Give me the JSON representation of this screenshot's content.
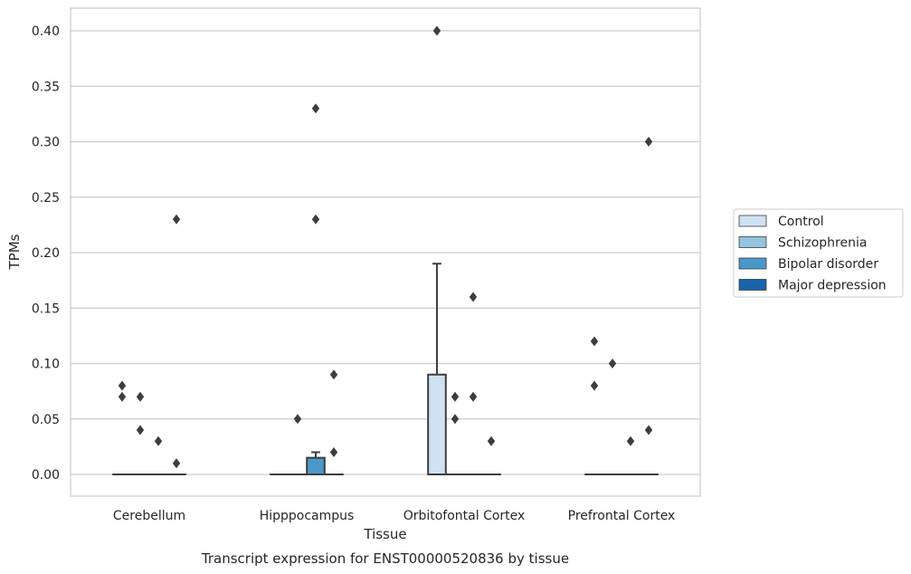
{
  "chart_data": {
    "type": "box",
    "title": "",
    "xlabel": "Tissue",
    "ylabel": "TPMs",
    "caption": "Transcript expression for ENST00000520836 by tissue",
    "ylim": [
      -0.02,
      0.42
    ],
    "yticks": [
      "0.00",
      "0.05",
      "0.10",
      "0.15",
      "0.20",
      "0.25",
      "0.30",
      "0.35",
      "0.40"
    ],
    "grid": true,
    "legend_position": "right",
    "categories": [
      "Cerebellum",
      "Hipppocampus",
      "Orbitofontal Cortex",
      "Prefrontal Cortex"
    ],
    "series": [
      {
        "name": "Control",
        "color": "#d0e1f2"
      },
      {
        "name": "Schizophrenia",
        "color": "#94c4df"
      },
      {
        "name": "Bipolar disorder",
        "color": "#4a98c9"
      },
      {
        "name": "Major depression",
        "color": "#1764ab"
      }
    ],
    "boxes": [
      {
        "category": "Cerebellum",
        "series": "Control",
        "min": 0,
        "q1": 0,
        "median": 0,
        "q3": 0,
        "max": 0,
        "outliers": [
          0.08,
          0.07
        ]
      },
      {
        "category": "Cerebellum",
        "series": "Schizophrenia",
        "min": 0,
        "q1": 0,
        "median": 0,
        "q3": 0,
        "max": 0,
        "outliers": [
          0.07,
          0.04
        ]
      },
      {
        "category": "Cerebellum",
        "series": "Bipolar disorder",
        "min": 0,
        "q1": 0,
        "median": 0,
        "q3": 0,
        "max": 0,
        "outliers": [
          0.03
        ]
      },
      {
        "category": "Cerebellum",
        "series": "Major depression",
        "min": 0,
        "q1": 0,
        "median": 0,
        "q3": 0,
        "max": 0,
        "outliers": [
          0.23,
          0.01
        ]
      },
      {
        "category": "Hipppocampus",
        "series": "Control",
        "min": 0,
        "q1": 0,
        "median": 0,
        "q3": 0,
        "max": 0,
        "outliers": []
      },
      {
        "category": "Hipppocampus",
        "series": "Schizophrenia",
        "min": 0,
        "q1": 0,
        "median": 0,
        "q3": 0,
        "max": 0,
        "outliers": [
          0.05
        ]
      },
      {
        "category": "Hipppocampus",
        "series": "Bipolar disorder",
        "min": 0,
        "q1": 0,
        "median": 0,
        "q3": 0.015,
        "max": 0.02,
        "outliers": [
          0.33,
          0.23
        ]
      },
      {
        "category": "Hipppocampus",
        "series": "Major depression",
        "min": 0,
        "q1": 0,
        "median": 0,
        "q3": 0,
        "max": 0,
        "outliers": [
          0.09,
          0.02
        ]
      },
      {
        "category": "Orbitofontal Cortex",
        "series": "Control",
        "min": 0,
        "q1": 0,
        "median": 0,
        "q3": 0.09,
        "max": 0.19,
        "outliers": [
          0.4
        ]
      },
      {
        "category": "Orbitofontal Cortex",
        "series": "Schizophrenia",
        "min": 0,
        "q1": 0,
        "median": 0,
        "q3": 0,
        "max": 0,
        "outliers": [
          0.07,
          0.05
        ]
      },
      {
        "category": "Orbitofontal Cortex",
        "series": "Bipolar disorder",
        "min": 0,
        "q1": 0,
        "median": 0,
        "q3": 0,
        "max": 0,
        "outliers": [
          0.16,
          0.07
        ]
      },
      {
        "category": "Orbitofontal Cortex",
        "series": "Major depression",
        "min": 0,
        "q1": 0,
        "median": 0,
        "q3": 0,
        "max": 0,
        "outliers": [
          0.03
        ]
      },
      {
        "category": "Prefrontal Cortex",
        "series": "Control",
        "min": 0,
        "q1": 0,
        "median": 0,
        "q3": 0,
        "max": 0,
        "outliers": [
          0.12,
          0.08
        ]
      },
      {
        "category": "Prefrontal Cortex",
        "series": "Schizophrenia",
        "min": 0,
        "q1": 0,
        "median": 0,
        "q3": 0,
        "max": 0,
        "outliers": [
          0.1
        ]
      },
      {
        "category": "Prefrontal Cortex",
        "series": "Bipolar disorder",
        "min": 0,
        "q1": 0,
        "median": 0,
        "q3": 0,
        "max": 0,
        "outliers": [
          0.03
        ]
      },
      {
        "category": "Prefrontal Cortex",
        "series": "Major depression",
        "min": 0,
        "q1": 0,
        "median": 0,
        "q3": 0,
        "max": 0,
        "outliers": [
          0.3,
          0.04
        ]
      }
    ]
  }
}
